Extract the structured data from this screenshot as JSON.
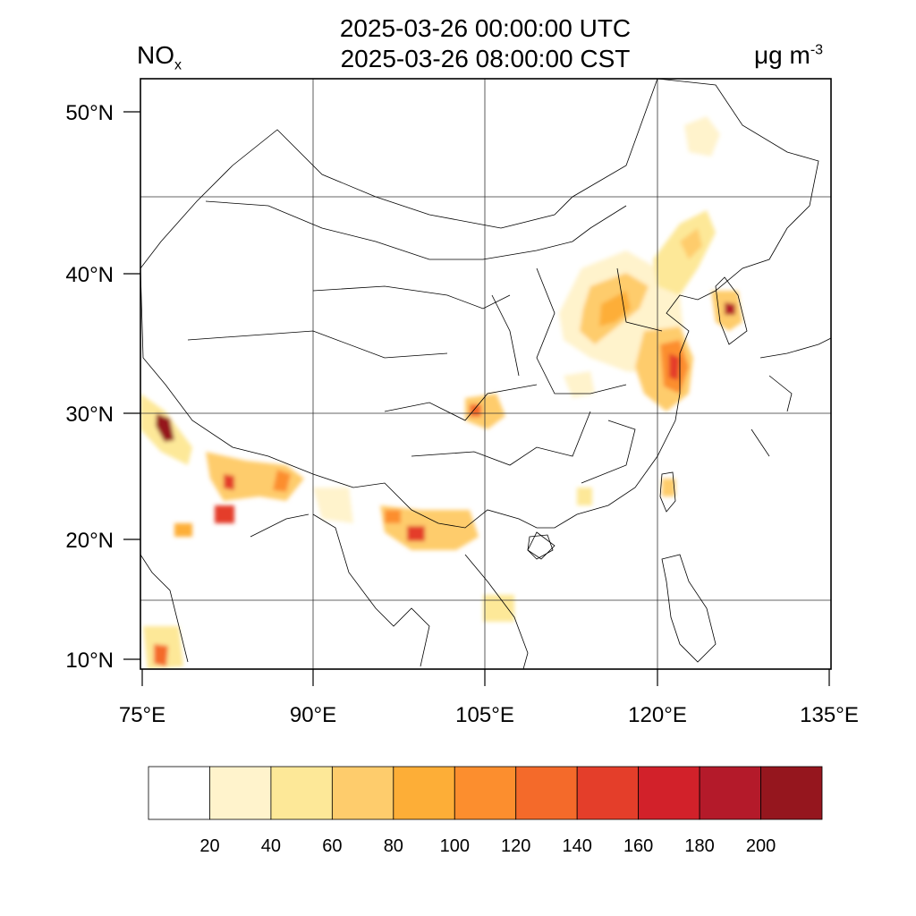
{
  "header": {
    "variable_main": "NO",
    "variable_sub": "x",
    "time_utc": "2025-03-26 00:00:00 UTC",
    "time_cst": "2025-03-26 08:00:00 CST",
    "unit_main": "μg m",
    "unit_sup": "-3"
  },
  "map": {
    "lon_range": [
      75,
      135
    ],
    "lat_range": [
      9,
      52
    ],
    "lat_ticks": [
      "50°N",
      "40°N",
      "30°N",
      "20°N",
      "10°N"
    ],
    "lon_ticks": [
      "75°E",
      "90°E",
      "105°E",
      "120°E",
      "135°E"
    ],
    "gridlines": true
  },
  "colorbar": {
    "labels": [
      "20",
      "40",
      "60",
      "80",
      "100",
      "120",
      "140",
      "160",
      "180",
      "200"
    ],
    "colors": [
      "#ffffff",
      "#fff3cc",
      "#fde898",
      "#fecc6c",
      "#fdae37",
      "#fc8e2e",
      "#f46a2a",
      "#e43e2a",
      "#d2212a",
      "#b41a2a",
      "#95161e"
    ]
  }
}
